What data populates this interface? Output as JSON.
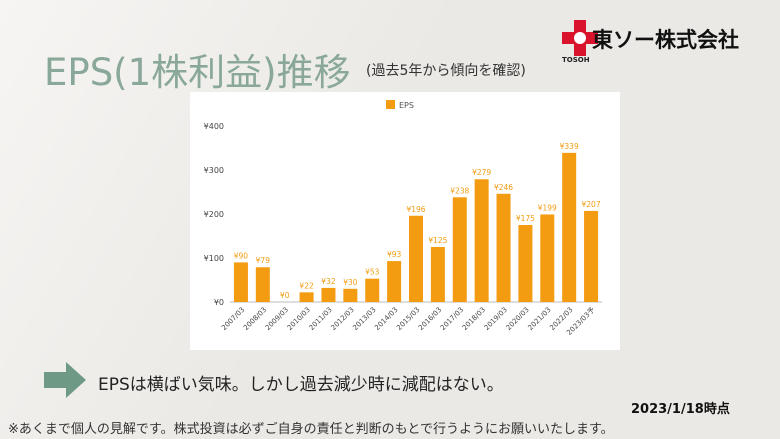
{
  "title": "EPS(1株利益)推移",
  "subtitle": "(過去5年から傾向を確認)",
  "logo": {
    "name": "東ソー株式会社",
    "sub": "TOSOH"
  },
  "conclusion": "EPSは横ばい気味。しかし過去減少時に減配はない。",
  "as_of": "2023/1/18時点",
  "disclaimer": "※あくまで個人の見解です。株式投資は必ずご自身の責任と判断のもとで行うようにお願いいたします。",
  "colors": {
    "bar": "#f39c12",
    "label": "#f39c12",
    "title": "#8aa89a",
    "arrow": "#6e9a85",
    "logo_red": "#d8132b"
  },
  "chart_data": {
    "type": "bar",
    "categories": [
      "2007/03",
      "2008/03",
      "2009/03",
      "2010/03",
      "2011/03",
      "2012/03",
      "2013/03",
      "2014/03",
      "2015/03",
      "2016/03",
      "2017/03",
      "2018/03",
      "2019/03",
      "2020/03",
      "2021/03",
      "2022/03",
      "2023/03予"
    ],
    "series": [
      {
        "name": "EPS",
        "values": [
          90,
          79,
          0,
          22,
          32,
          30,
          53,
          93,
          196,
          125,
          238,
          279,
          246,
          175,
          199,
          339,
          207
        ]
      }
    ],
    "value_labels": [
      "¥90",
      "¥79",
      "¥0",
      "¥22",
      "¥32",
      "¥30",
      "¥53",
      "¥93",
      "¥196",
      "¥125",
      "¥238",
      "¥279",
      "¥246",
      "¥175",
      "¥199",
      "¥339",
      "¥207"
    ],
    "yticks": [
      "¥0",
      "¥100",
      "¥200",
      "¥300",
      "¥400"
    ],
    "ytick_values": [
      0,
      100,
      200,
      300,
      400
    ],
    "ylim": [
      0,
      400
    ],
    "legend": "top",
    "grid": false
  }
}
